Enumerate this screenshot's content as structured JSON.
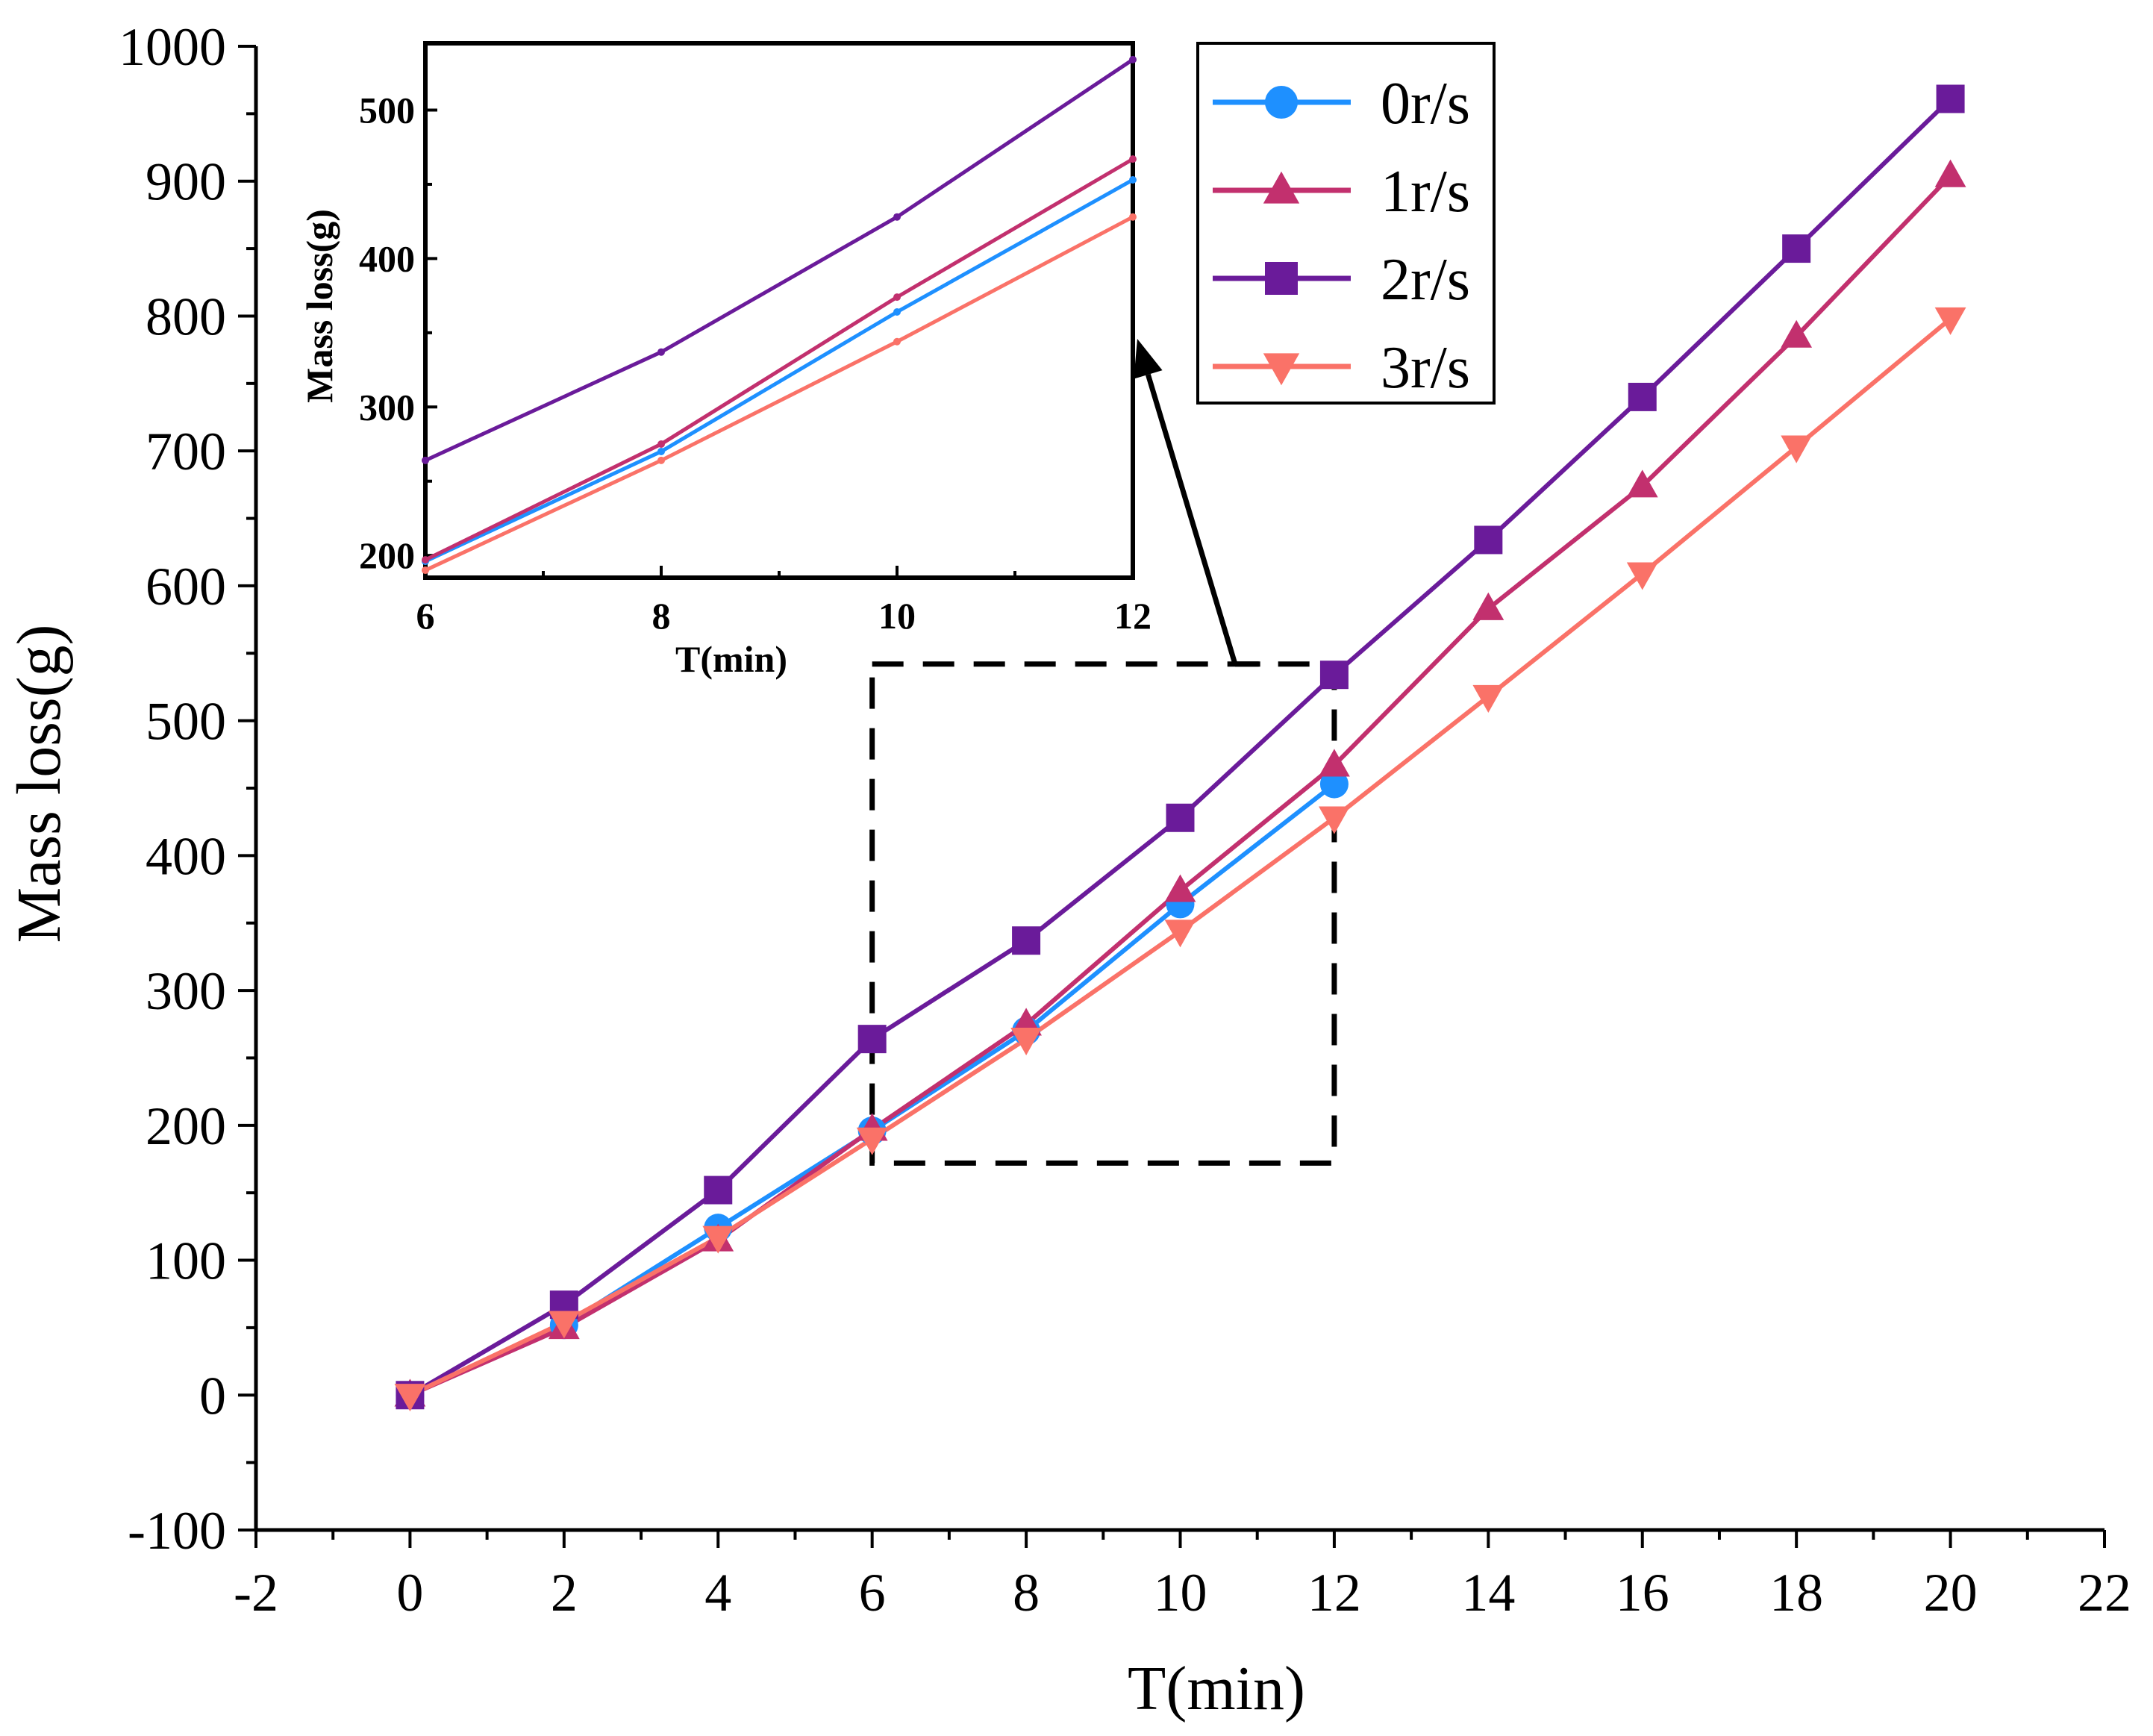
{
  "chart_data": {
    "type": "line",
    "xlabel": "T(min)",
    "ylabel": "Mass loss(g)",
    "xlim": [
      -2,
      22
    ],
    "ylim": [
      -100,
      1000
    ],
    "xticks": [
      "-2",
      "0",
      "2",
      "4",
      "6",
      "8",
      "10",
      "12",
      "14",
      "16",
      "18",
      "20",
      "22"
    ],
    "yticks": [
      "-100",
      "0",
      "100",
      "200",
      "300",
      "400",
      "500",
      "600",
      "700",
      "800",
      "900",
      "1000"
    ],
    "x": [
      0,
      2,
      4,
      6,
      8,
      10,
      12,
      14,
      16,
      18,
      20
    ],
    "legend_position": "top-right",
    "series": [
      {
        "name": "0r/s",
        "color": "#1E90FF",
        "marker": "circle",
        "values": [
          0,
          52,
          124,
          196,
          270,
          364,
          453,
          null,
          null,
          null,
          null
        ]
      },
      {
        "name": "1r/s",
        "color": "#C2306E",
        "marker": "triangle-up",
        "values": [
          0,
          50,
          115,
          197,
          275,
          374,
          467,
          583,
          674,
          785,
          904
        ]
      },
      {
        "name": "2r/s",
        "color": "#6A1B9A",
        "marker": "square",
        "values": [
          0,
          67,
          152,
          264,
          337,
          428,
          534,
          634,
          740,
          850,
          961
        ]
      },
      {
        "name": "3r/s",
        "color": "#FA7268",
        "marker": "triangle-down",
        "values": [
          0,
          54,
          117,
          190,
          264,
          344,
          428,
          518,
          609,
          703,
          798
        ]
      }
    ],
    "zoom_box": {
      "xrange": [
        6,
        12
      ],
      "yrange": [
        172,
        542
      ],
      "style": "dashed"
    },
    "inset": {
      "xlabel": "T(min)",
      "ylabel": "Mass loss(g)",
      "xlim": [
        6,
        12
      ],
      "ylim": [
        185,
        545
      ],
      "xticks": [
        "6",
        "8",
        "10",
        "12"
      ],
      "yticks": [
        "200",
        "300",
        "400",
        "500"
      ]
    }
  }
}
